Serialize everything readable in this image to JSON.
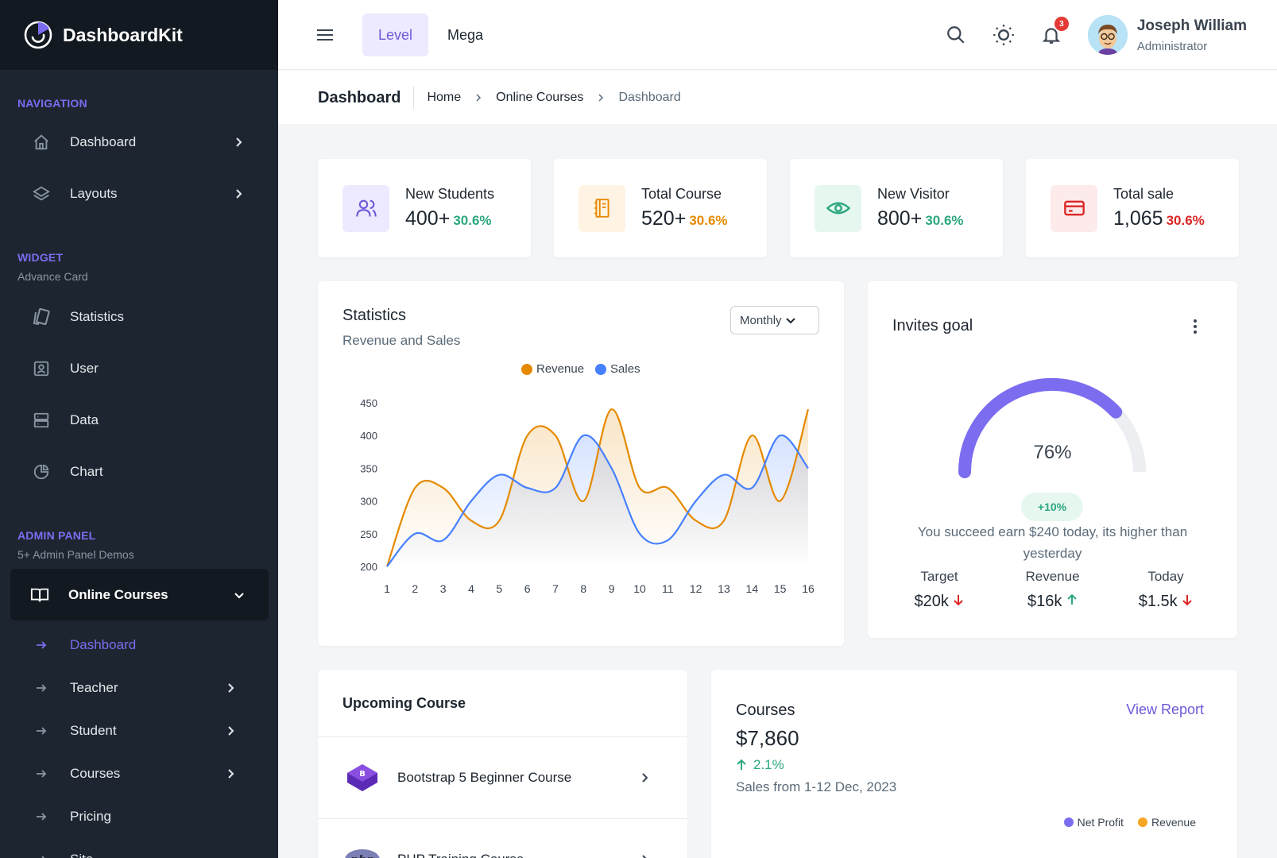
{
  "brand": {
    "name": "DashboardKit"
  },
  "sidebar": {
    "navigation_caption": "NAVIGATION",
    "nav_items": [
      {
        "label": "Dashboard",
        "icon": "home-icon"
      },
      {
        "label": "Layouts",
        "icon": "layers-icon"
      }
    ],
    "widget_caption": "WIDGET",
    "widget_sub": "Advance Card",
    "widget_items": [
      {
        "label": "Statistics",
        "icon": "cards-icon"
      },
      {
        "label": "User",
        "icon": "user-card-icon"
      },
      {
        "label": "Data",
        "icon": "database-icon"
      },
      {
        "label": "Chart",
        "icon": "pie-chart-icon"
      }
    ],
    "admin_caption": "ADMIN PANEL",
    "admin_sub": "5+ Admin Panel Demos",
    "active_group": {
      "label": "Online Courses",
      "icon": "book-icon"
    },
    "sub_items": [
      {
        "label": "Dashboard",
        "active": true,
        "has_children": false
      },
      {
        "label": "Teacher",
        "active": false,
        "has_children": true
      },
      {
        "label": "Student",
        "active": false,
        "has_children": true
      },
      {
        "label": "Courses",
        "active": false,
        "has_children": true
      },
      {
        "label": "Pricing",
        "active": false,
        "has_children": false
      },
      {
        "label": "Site",
        "active": false,
        "has_children": false
      }
    ]
  },
  "header": {
    "tabs": [
      "Level",
      "Mega"
    ],
    "active_tab": "Level",
    "notification_count": "3",
    "user": {
      "name": "Joseph William",
      "role": "Administrator"
    }
  },
  "breadcrumb": {
    "title": "Dashboard",
    "items": [
      "Home",
      "Online Courses",
      "Dashboard"
    ]
  },
  "stats": [
    {
      "label": "New Students",
      "value": "400+",
      "change": "30.6%",
      "color": "#2ca87f",
      "icon": "users-icon",
      "icon_bg": "#ede9fe",
      "icon_color": "#6c5ad8"
    },
    {
      "label": "Total Course",
      "value": "520+",
      "change": "30.6%",
      "color": "#e58a00",
      "icon": "notebook-icon",
      "icon_bg": "#fff3e3",
      "icon_color": "#e58a00"
    },
    {
      "label": "New Visitor",
      "value": "800+",
      "change": "30.6%",
      "color": "#2ca87f",
      "icon": "eye-icon",
      "icon_bg": "#e6f7ef",
      "icon_color": "#2ca87f"
    },
    {
      "label": "Total sale",
      "value": "1,065",
      "change": "30.6%",
      "color": "#dc2626",
      "icon": "credit-card-icon",
      "icon_bg": "#fdeaea",
      "icon_color": "#dc2626"
    }
  ],
  "statistics": {
    "title": "Statistics",
    "subtitle": "Revenue and Sales",
    "filter": "Monthly"
  },
  "chart_data": {
    "type": "area",
    "x": [
      1,
      2,
      3,
      4,
      5,
      6,
      7,
      8,
      9,
      10,
      11,
      12,
      13,
      14,
      15,
      16
    ],
    "series": [
      {
        "name": "Revenue",
        "color": "#e58a00",
        "values": [
          200,
          320,
          320,
          270,
          270,
          400,
          400,
          300,
          440,
          320,
          320,
          270,
          270,
          400,
          300,
          440
        ]
      },
      {
        "name": "Sales",
        "color": "#4680ff",
        "values": [
          200,
          250,
          240,
          300,
          340,
          320,
          320,
          400,
          350,
          250,
          240,
          300,
          340,
          320,
          400,
          350
        ]
      }
    ],
    "yticks": [
      200,
      250,
      300,
      350,
      400,
      450
    ],
    "ylim": [
      200,
      450
    ],
    "grid": false,
    "legend_position": "top-center"
  },
  "invites": {
    "title": "Invites goal",
    "percent": 76,
    "percent_label": "76%",
    "gauge_color": "#7c6cf0",
    "gauge_track": "#eceef1",
    "badge": "+10%",
    "message": "You succeed earn $240 today, its higher than yesterday",
    "stats": [
      {
        "label": "Target",
        "value": "$20k",
        "trend": "down"
      },
      {
        "label": "Revenue",
        "value": "$16k",
        "trend": "up"
      },
      {
        "label": "Today",
        "value": "$1.5k",
        "trend": "down"
      }
    ]
  },
  "upcoming": {
    "title": "Upcoming Course",
    "items": [
      {
        "label": "Bootstrap 5 Beginner Course",
        "icon": "bootstrap-icon"
      },
      {
        "label": "PHP Training Course",
        "icon": "php-icon"
      }
    ]
  },
  "courses": {
    "title": "Courses",
    "amount": "$7,860",
    "change": "2.1%",
    "period": "Sales from 1-12 Dec, 2023",
    "link": "View Report",
    "legend": [
      {
        "name": "Net Profit",
        "color": "#7c6cf0"
      },
      {
        "name": "Revenue",
        "color": "#f5a623"
      }
    ]
  }
}
